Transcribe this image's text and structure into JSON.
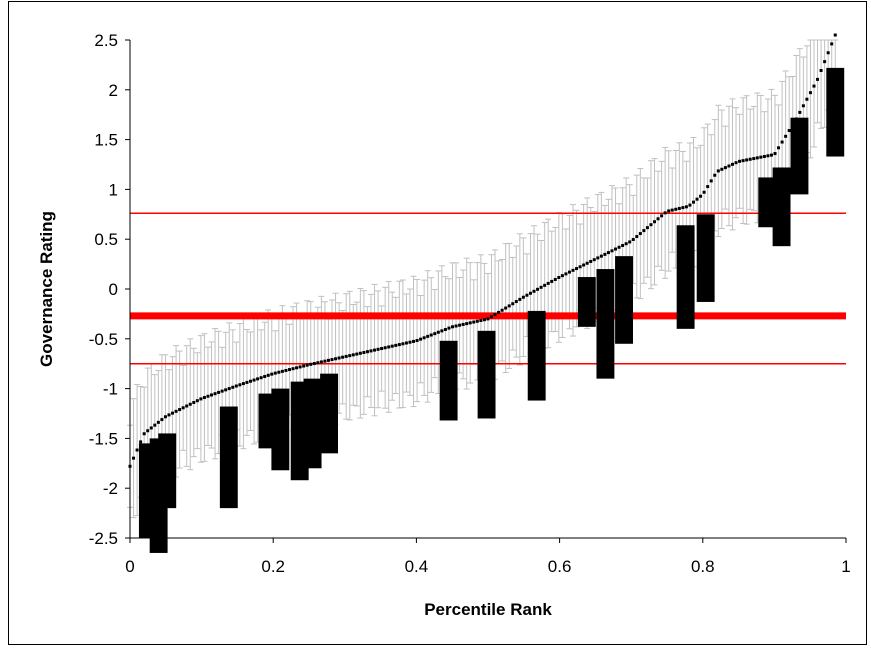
{
  "chart_data": {
    "type": "scatter",
    "title": "",
    "xlabel": "Percentile Rank",
    "ylabel": "Governance Rating",
    "xlim": [
      0,
      1
    ],
    "ylim": [
      -2.5,
      2.5
    ],
    "x_ticks": [
      "0",
      "0.2",
      "0.4",
      "0.6",
      "0.8",
      "1"
    ],
    "y_ticks": [
      "-2.5",
      "-2",
      "-1.5",
      "-1",
      "-0.5",
      "0",
      "0.5",
      "1",
      "1.5",
      "2",
      "2.5"
    ],
    "grid": false,
    "legend": "none",
    "colors": {
      "points": "#000000",
      "error_bars": "#c0c0c0",
      "reference_lines": "#ff0000",
      "bars": "#000000"
    },
    "series": [
      {
        "kind": "points-with-error-bars",
        "profile": [
          [
            0.0,
            -1.78
          ],
          [
            0.02,
            -1.45
          ],
          [
            0.05,
            -1.28
          ],
          [
            0.1,
            -1.1
          ],
          [
            0.15,
            -0.97
          ],
          [
            0.2,
            -0.85
          ],
          [
            0.25,
            -0.76
          ],
          [
            0.3,
            -0.68
          ],
          [
            0.35,
            -0.6
          ],
          [
            0.4,
            -0.52
          ],
          [
            0.45,
            -0.38
          ],
          [
            0.5,
            -0.3
          ],
          [
            0.55,
            -0.08
          ],
          [
            0.6,
            0.12
          ],
          [
            0.65,
            0.3
          ],
          [
            0.7,
            0.48
          ],
          [
            0.75,
            0.78
          ],
          [
            0.78,
            0.83
          ],
          [
            0.8,
            0.95
          ],
          [
            0.82,
            1.18
          ],
          [
            0.85,
            1.28
          ],
          [
            0.9,
            1.35
          ],
          [
            0.93,
            1.7
          ],
          [
            0.96,
            2.1
          ],
          [
            0.985,
            2.55
          ]
        ],
        "error_halfwidth": 0.55
      },
      {
        "kind": "vertical-bars",
        "bars": [
          {
            "x": 0.025,
            "low": -2.5,
            "high": -1.55
          },
          {
            "x": 0.04,
            "low": -2.65,
            "high": -1.5
          },
          {
            "x": 0.052,
            "low": -2.2,
            "high": -1.45
          },
          {
            "x": 0.138,
            "low": -2.2,
            "high": -1.18
          },
          {
            "x": 0.192,
            "low": -1.6,
            "high": -1.05
          },
          {
            "x": 0.21,
            "low": -1.82,
            "high": -1.0
          },
          {
            "x": 0.237,
            "low": -1.92,
            "high": -0.93
          },
          {
            "x": 0.255,
            "low": -1.8,
            "high": -0.9
          },
          {
            "x": 0.278,
            "low": -1.65,
            "high": -0.85
          },
          {
            "x": 0.445,
            "low": -1.32,
            "high": -0.52
          },
          {
            "x": 0.498,
            "low": -1.3,
            "high": -0.42
          },
          {
            "x": 0.568,
            "low": -1.12,
            "high": -0.22
          },
          {
            "x": 0.638,
            "low": -0.38,
            "high": 0.12
          },
          {
            "x": 0.664,
            "low": -0.9,
            "high": 0.2
          },
          {
            "x": 0.69,
            "low": -0.55,
            "high": 0.33
          },
          {
            "x": 0.776,
            "low": -0.4,
            "high": 0.64
          },
          {
            "x": 0.804,
            "low": -0.13,
            "high": 0.75
          },
          {
            "x": 0.89,
            "low": 0.62,
            "high": 1.12
          },
          {
            "x": 0.91,
            "low": 0.43,
            "high": 1.22
          },
          {
            "x": 0.935,
            "low": 0.95,
            "high": 1.72
          },
          {
            "x": 0.985,
            "low": 1.33,
            "high": 2.22
          }
        ]
      }
    ],
    "reference_lines": [
      {
        "y": 0.76,
        "weight": "thin"
      },
      {
        "y": -0.27,
        "weight": "thick"
      },
      {
        "y": -0.75,
        "weight": "thin"
      }
    ]
  }
}
